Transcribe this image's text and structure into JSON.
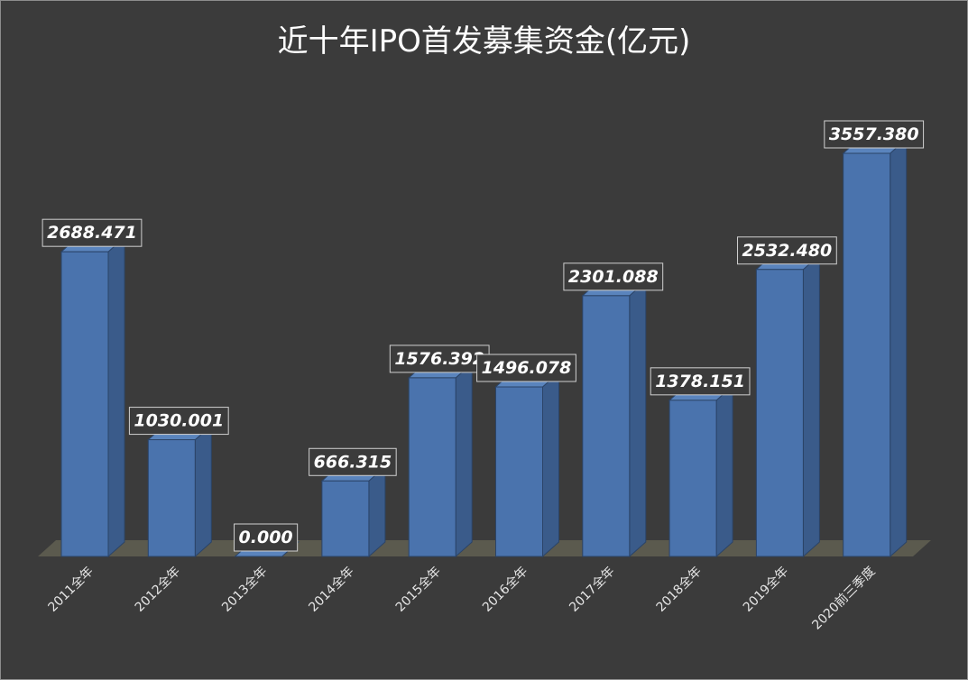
{
  "chart_data": {
    "type": "bar",
    "title": "近十年IPO首发募集资金(亿元)",
    "categories": [
      "2011全年",
      "2012全年",
      "2013全年",
      "2014全年",
      "2015全年",
      "2016全年",
      "2017全年",
      "2018全年",
      "2019全年",
      "2020前三季度"
    ],
    "values": [
      2688.471,
      1030.001,
      0.0,
      666.315,
      1576.392,
      1496.078,
      2301.088,
      1378.151,
      2532.48,
      3557.38
    ],
    "data_labels": [
      "2688.471",
      "1030.001",
      "0.000",
      "666.315",
      "1576.392",
      "1496.078",
      "2301.088",
      "1378.151",
      "2532.480",
      "3557.380"
    ],
    "xlabel": "",
    "ylabel": "",
    "ylim": [
      0,
      3600
    ],
    "grid": false,
    "legend": "none",
    "bar_color": "#4a73ad",
    "bar_side_color": "#3a5b8a",
    "bar_top_color": "#5a84bd",
    "floor_color": "#5b5a4e"
  }
}
